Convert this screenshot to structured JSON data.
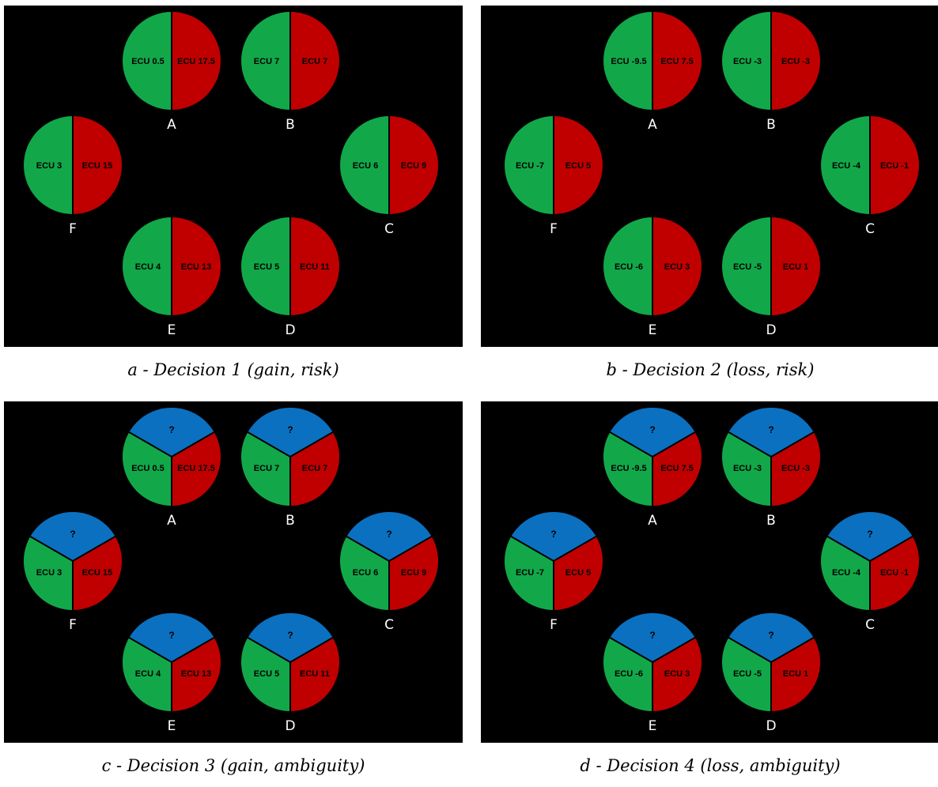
{
  "colors": {
    "background": "#000000",
    "green": "#12a84a",
    "red": "#c00000",
    "blue": "#0b70c0",
    "divider": "#000000",
    "letter": "#ffffff"
  },
  "panels": [
    {
      "caption": "a - Decision 1 (gain, risk)",
      "ambiguity": false,
      "options": [
        {
          "letter": "A",
          "left": "ECU 0.5",
          "right": "ECU 17.5"
        },
        {
          "letter": "B",
          "left": "ECU 7",
          "right": "ECU 7"
        },
        {
          "letter": "C",
          "left": "ECU 6",
          "right": "ECU 9"
        },
        {
          "letter": "D",
          "left": "ECU 5",
          "right": "ECU 11"
        },
        {
          "letter": "E",
          "left": "ECU 4",
          "right": "ECU 13"
        },
        {
          "letter": "F",
          "left": "ECU 3",
          "right": "ECU 15"
        }
      ]
    },
    {
      "caption": "b - Decision 2 (loss, risk)",
      "ambiguity": false,
      "options": [
        {
          "letter": "A",
          "left": "ECU -9.5",
          "right": "ECU 7.5"
        },
        {
          "letter": "B",
          "left": "ECU -3",
          "right": "ECU -3"
        },
        {
          "letter": "C",
          "left": "ECU -4",
          "right": "ECU -1"
        },
        {
          "letter": "D",
          "left": "ECU -5",
          "right": "ECU 1"
        },
        {
          "letter": "E",
          "left": "ECU -6",
          "right": "ECU 3"
        },
        {
          "letter": "F",
          "left": "ECU -7",
          "right": "ECU 5"
        }
      ]
    },
    {
      "caption": "c - Decision 3 (gain, ambiguity)",
      "ambiguity": true,
      "unknown": "?",
      "options": [
        {
          "letter": "A",
          "left": "ECU 0.5",
          "right": "ECU 17.5"
        },
        {
          "letter": "B",
          "left": "ECU 7",
          "right": "ECU 7"
        },
        {
          "letter": "C",
          "left": "ECU 6",
          "right": "ECU 9"
        },
        {
          "letter": "D",
          "left": "ECU 5",
          "right": "ECU 11"
        },
        {
          "letter": "E",
          "left": "ECU 4",
          "right": "ECU 13"
        },
        {
          "letter": "F",
          "left": "ECU 3",
          "right": "ECU 15"
        }
      ]
    },
    {
      "caption": "d - Decision 4 (loss, ambiguity)",
      "ambiguity": true,
      "unknown": "?",
      "options": [
        {
          "letter": "A",
          "left": "ECU -9.5",
          "right": "ECU 7.5"
        },
        {
          "letter": "B",
          "left": "ECU -3",
          "right": "ECU -3"
        },
        {
          "letter": "C",
          "left": "ECU -4",
          "right": "ECU -1"
        },
        {
          "letter": "D",
          "left": "ECU -5",
          "right": "ECU 1"
        },
        {
          "letter": "E",
          "left": "ECU -6",
          "right": "ECU 3"
        },
        {
          "letter": "F",
          "left": "ECU -7",
          "right": "ECU 5"
        }
      ]
    }
  ]
}
